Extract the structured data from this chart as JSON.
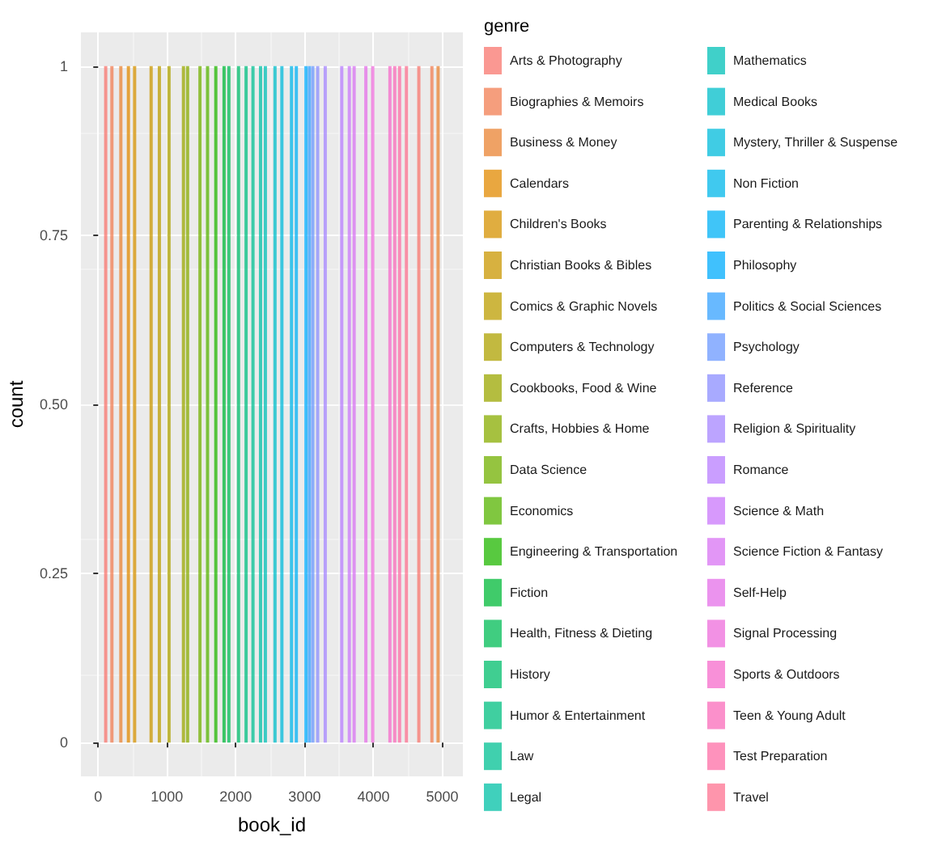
{
  "chart_data": {
    "type": "bar",
    "xlabel": "book_id",
    "ylabel": "count",
    "legend_title": "genre",
    "xlim": [
      -250,
      5300
    ],
    "xticks": [
      0,
      1000,
      2000,
      3000,
      4000,
      5000
    ],
    "ylim": [
      -0.05,
      1.05
    ],
    "yticks": [
      0,
      0.25,
      {
        "value": 0.5,
        "label": "0.50"
      },
      0.75,
      1
    ],
    "grid": true,
    "legend": "right",
    "series": [
      {
        "name": "Arts & Photography",
        "color": "#f8766d",
        "x": [
          110,
          4660
        ],
        "values": [
          1,
          1
        ]
      },
      {
        "name": "Biographies & Memoirs",
        "color": "#f27d52",
        "x": [
          200,
          4850
        ],
        "values": [
          1,
          1
        ]
      },
      {
        "name": "Business & Money",
        "color": "#ea8331",
        "x": [
          330,
          4940
        ],
        "values": [
          1,
          1
        ]
      },
      {
        "name": "Calendars",
        "color": "#e18a00",
        "x": [
          440
        ],
        "values": [
          1
        ]
      },
      {
        "name": "Children's Books",
        "color": "#d69100",
        "x": [
          530
        ],
        "values": [
          1
        ]
      },
      {
        "name": "Christian Books & Bibles",
        "color": "#ca9700",
        "x": [
          770
        ],
        "values": [
          1
        ]
      },
      {
        "name": "Comics & Graphic Novels",
        "color": "#bc9d00",
        "x": [
          890
        ],
        "values": [
          1
        ]
      },
      {
        "name": "Computers & Technology",
        "color": "#ada200",
        "x": [
          1030
        ],
        "values": [
          1
        ]
      },
      {
        "name": "Cookbooks, Food & Wine",
        "color": "#9ba700",
        "x": [
          1240
        ],
        "values": [
          1
        ]
      },
      {
        "name": "Crafts, Hobbies & Home",
        "color": "#88ac00",
        "x": [
          1300
        ],
        "values": [
          1
        ]
      },
      {
        "name": "Data Science",
        "color": "#72b000",
        "x": [
          1480
        ],
        "values": [
          1
        ]
      },
      {
        "name": "Economics",
        "color": "#55b400",
        "x": [
          1590
        ],
        "values": [
          1
        ]
      },
      {
        "name": "Engineering & Transportation",
        "color": "#20b700",
        "x": [
          1710
        ],
        "values": [
          1
        ]
      },
      {
        "name": "Fiction",
        "color": "#00ba38",
        "x": [
          1830
        ],
        "values": [
          1
        ]
      },
      {
        "name": "Health, Fitness & Dieting",
        "color": "#00bc55",
        "x": [
          1900
        ],
        "values": [
          1
        ]
      },
      {
        "name": "History",
        "color": "#00be6c",
        "x": [
          2040
        ],
        "values": [
          1
        ]
      },
      {
        "name": "Humor & Entertainment",
        "color": "#00bf80",
        "x": [
          2150
        ],
        "values": [
          1
        ]
      },
      {
        "name": "Law",
        "color": "#00c093",
        "x": [
          2250
        ],
        "values": [
          1
        ]
      },
      {
        "name": "Legal",
        "color": "#00c0a5",
        "x": [
          2360
        ],
        "values": [
          1
        ]
      },
      {
        "name": "Mathematics",
        "color": "#00c0b7",
        "x": [
          2430
        ],
        "values": [
          1
        ]
      },
      {
        "name": "Medical Books",
        "color": "#00bdca",
        "x": [
          2570
        ],
        "values": [
          1
        ]
      },
      {
        "name": "Mystery, Thriller & Suspense",
        "color": "#00bbdb",
        "x": [
          2670
        ],
        "values": [
          1
        ]
      },
      {
        "name": "Non Fiction",
        "color": "#00b7e9",
        "x": [
          2810
        ],
        "values": [
          1
        ]
      },
      {
        "name": "Parenting & Relationships",
        "color": "#00b2f5",
        "x": [
          2880
        ],
        "values": [
          1
        ]
      },
      {
        "name": "Philosophy",
        "color": "#00acfc",
        "x": [
          3020
        ],
        "values": [
          1
        ]
      },
      {
        "name": "Politics & Social Sciences",
        "color": "#35a2ff",
        "x": [
          3070
        ],
        "values": [
          1
        ]
      },
      {
        "name": "Psychology",
        "color": "#6b98ff",
        "x": [
          3120
        ],
        "values": [
          1
        ]
      },
      {
        "name": "Reference",
        "color": "#8b8eff",
        "x": [
          3190
        ],
        "values": [
          1
        ]
      },
      {
        "name": "Religion & Spirituality",
        "color": "#a585ff",
        "x": [
          3300
        ],
        "values": [
          1
        ]
      },
      {
        "name": "Romance",
        "color": "#b87dff",
        "x": [
          3540
        ],
        "values": [
          1
        ]
      },
      {
        "name": "Science & Math",
        "color": "#c977fb",
        "x": [
          3650
        ],
        "values": [
          1
        ]
      },
      {
        "name": "Science Fiction & Fantasy",
        "color": "#d873f3",
        "x": [
          3720
        ],
        "values": [
          1
        ]
      },
      {
        "name": "Self-Help",
        "color": "#e46fe8",
        "x": [
          3890
        ],
        "values": [
          1
        ]
      },
      {
        "name": "Signal Processing",
        "color": "#ee6cdb",
        "x": [
          3990
        ],
        "values": [
          1
        ]
      },
      {
        "name": "Sports & Outdoors",
        "color": "#f66bcb",
        "x": [
          4240
        ],
        "values": [
          1
        ]
      },
      {
        "name": "Teen & Young Adult",
        "color": "#fa6bb9",
        "x": [
          4310
        ],
        "values": [
          1
        ]
      },
      {
        "name": "Test Preparation",
        "color": "#fd6ea6",
        "x": [
          4380
        ],
        "values": [
          1
        ]
      },
      {
        "name": "Travel",
        "color": "#fd7290",
        "x": [
          4480
        ],
        "values": [
          1
        ]
      }
    ]
  }
}
